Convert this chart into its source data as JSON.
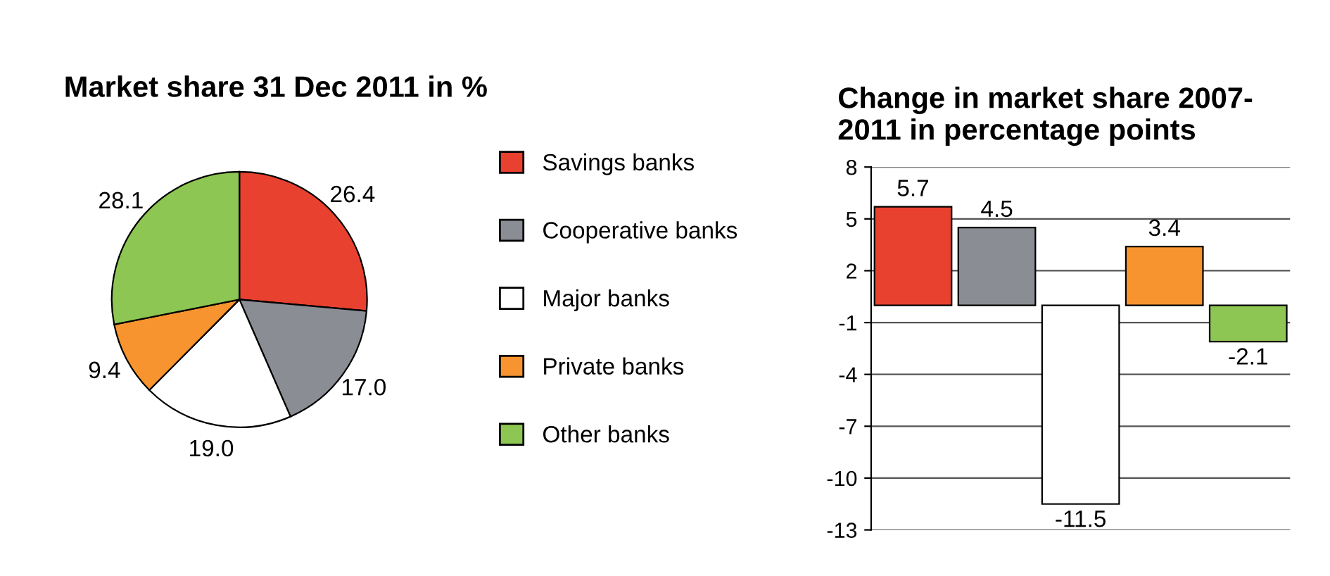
{
  "chart_data": [
    {
      "type": "pie",
      "title": "Market share 31 Dec 2011 in %",
      "categories": [
        "Savings banks",
        "Cooperative banks",
        "Major banks",
        "Private banks",
        "Other banks"
      ],
      "values": [
        26.4,
        17.0,
        19.0,
        9.4,
        28.1
      ],
      "colors": [
        "#e8412f",
        "#8a8d93",
        "#ffffff",
        "#f7942f",
        "#8dc653"
      ],
      "value_labels": [
        "26.4",
        "17.0",
        "19.0",
        "9.4",
        "28.1"
      ],
      "legend": "right"
    },
    {
      "type": "bar",
      "title": "Change in market share 2007-\n2011 in percentage points",
      "categories": [
        null,
        null,
        null,
        null,
        null
      ],
      "values": [
        5.7,
        4.5,
        -11.5,
        3.4,
        -2.1
      ],
      "colors": [
        "#e8412f",
        "#8a8d93",
        "#ffffff",
        "#f7942f",
        "#8dc653"
      ],
      "data_labels": true,
      "ylim": [
        -13,
        8
      ],
      "yticks": [
        8,
        5,
        2,
        -1,
        -4,
        -7,
        -10,
        -13
      ],
      "grid": "y"
    }
  ]
}
